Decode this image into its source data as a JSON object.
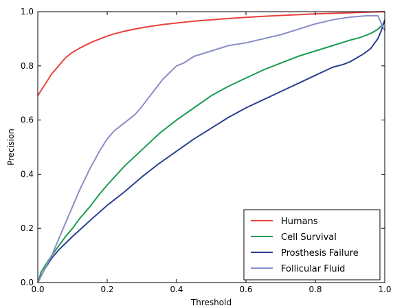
{
  "chart_data": {
    "type": "line",
    "xlabel": "Threshold",
    "ylabel": "Precision",
    "xlim": [
      0.0,
      1.0
    ],
    "ylim": [
      0.0,
      1.0
    ],
    "xticks": [
      "0.0",
      "0.2",
      "0.4",
      "0.6",
      "0.8",
      "1.0"
    ],
    "yticks": [
      "0.0",
      "0.2",
      "0.4",
      "0.6",
      "0.8",
      "1.0"
    ],
    "grid": false,
    "legend_position": "bottom-right",
    "series": [
      {
        "name": "Humans",
        "color": "#e8413c",
        "x": [
          0.0,
          0.02,
          0.04,
          0.06,
          0.08,
          0.1,
          0.12,
          0.14,
          0.16,
          0.18,
          0.2,
          0.22,
          0.25,
          0.28,
          0.31,
          0.34,
          0.37,
          0.4,
          0.45,
          0.5,
          0.55,
          0.6,
          0.65,
          0.7,
          0.75,
          0.8,
          0.85,
          0.9,
          0.95,
          1.0
        ],
        "y": [
          0.69,
          0.73,
          0.77,
          0.8,
          0.83,
          0.85,
          0.865,
          0.878,
          0.89,
          0.9,
          0.91,
          0.918,
          0.928,
          0.936,
          0.943,
          0.949,
          0.954,
          0.958,
          0.965,
          0.97,
          0.975,
          0.979,
          0.983,
          0.986,
          0.989,
          0.992,
          0.994,
          0.996,
          0.998,
          1.0
        ]
      },
      {
        "name": "Cell Survival",
        "color": "#1a9a50",
        "x": [
          0.0,
          0.01,
          0.02,
          0.04,
          0.06,
          0.08,
          0.1,
          0.12,
          0.15,
          0.18,
          0.2,
          0.25,
          0.3,
          0.35,
          0.4,
          0.45,
          0.5,
          0.55,
          0.6,
          0.65,
          0.7,
          0.75,
          0.8,
          0.85,
          0.9,
          0.93,
          0.96,
          0.98,
          1.0
        ],
        "y": [
          0.0,
          0.04,
          0.06,
          0.1,
          0.135,
          0.17,
          0.2,
          0.235,
          0.28,
          0.33,
          0.36,
          0.43,
          0.49,
          0.55,
          0.6,
          0.645,
          0.69,
          0.725,
          0.755,
          0.785,
          0.81,
          0.835,
          0.855,
          0.875,
          0.895,
          0.905,
          0.92,
          0.935,
          0.96
        ]
      },
      {
        "name": "Prosthesis Failure",
        "color": "#2a3f8f",
        "x": [
          0.0,
          0.02,
          0.04,
          0.06,
          0.08,
          0.1,
          0.13,
          0.16,
          0.2,
          0.25,
          0.3,
          0.35,
          0.4,
          0.45,
          0.5,
          0.55,
          0.6,
          0.65,
          0.7,
          0.75,
          0.8,
          0.85,
          0.88,
          0.9,
          0.92,
          0.94,
          0.96,
          0.98,
          0.99,
          1.0
        ],
        "y": [
          0.0,
          0.05,
          0.09,
          0.12,
          0.145,
          0.17,
          0.205,
          0.24,
          0.285,
          0.335,
          0.39,
          0.44,
          0.485,
          0.53,
          0.57,
          0.61,
          0.645,
          0.675,
          0.705,
          0.735,
          0.765,
          0.795,
          0.805,
          0.815,
          0.83,
          0.845,
          0.865,
          0.9,
          0.93,
          0.97
        ]
      },
      {
        "name": "Follicular Fluid",
        "color": "#8a8ec8",
        "x": [
          0.0,
          0.02,
          0.04,
          0.06,
          0.08,
          0.1,
          0.12,
          0.15,
          0.18,
          0.2,
          0.22,
          0.25,
          0.28,
          0.3,
          0.33,
          0.36,
          0.38,
          0.4,
          0.42,
          0.45,
          0.5,
          0.55,
          0.6,
          0.65,
          0.7,
          0.75,
          0.8,
          0.85,
          0.9,
          0.95,
          0.98,
          1.0
        ],
        "y": [
          0.0,
          0.05,
          0.1,
          0.16,
          0.22,
          0.28,
          0.34,
          0.42,
          0.49,
          0.53,
          0.56,
          0.59,
          0.62,
          0.65,
          0.7,
          0.75,
          0.775,
          0.8,
          0.81,
          0.835,
          0.855,
          0.875,
          0.885,
          0.9,
          0.915,
          0.935,
          0.955,
          0.97,
          0.98,
          0.985,
          0.985,
          0.93
        ]
      }
    ]
  }
}
